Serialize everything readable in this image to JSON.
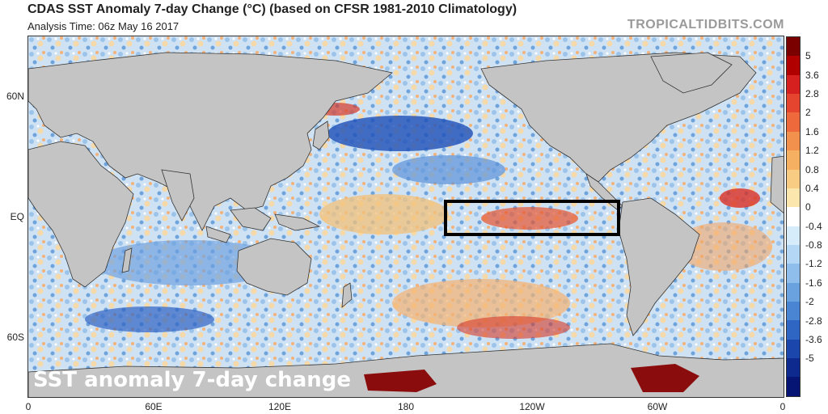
{
  "header": {
    "title": "CDAS SST Anomaly 7-day Change (°C) (based on CFSR 1981-2010 Climatology)",
    "analysis_time": "Analysis Time: 06z May 16 2017",
    "credit": "TROPICALTIDBITS.COM"
  },
  "map": {
    "overlay_label": "SST anomaly 7-day change",
    "lat_labels": [
      "60N",
      "EQ",
      "60S"
    ],
    "lon_labels": [
      "0",
      "60E",
      "120E",
      "180",
      "120W",
      "60W",
      "0"
    ],
    "highlight_box": "Niño 3.4 region",
    "land_color": "#c4c4c4"
  },
  "colorbar": {
    "labels": [
      "5",
      "3.6",
      "2.8",
      "2",
      "1.6",
      "1.2",
      "0.8",
      "0.4",
      "0",
      "-0.4",
      "-0.8",
      "-1.2",
      "-1.6",
      "-2",
      "-2.8",
      "-3.6",
      "-5"
    ],
    "colors": [
      "#7a0000",
      "#b00000",
      "#d62020",
      "#e5452e",
      "#ee6a3c",
      "#f2904d",
      "#f6b062",
      "#f8cd83",
      "#fbe7ad",
      "#ffffff",
      "#d6ecfa",
      "#b3d7f4",
      "#8fbeec",
      "#6aa2e0",
      "#4a85d3",
      "#2f66c4",
      "#1b47ad",
      "#0e2a8f",
      "#061473"
    ]
  }
}
